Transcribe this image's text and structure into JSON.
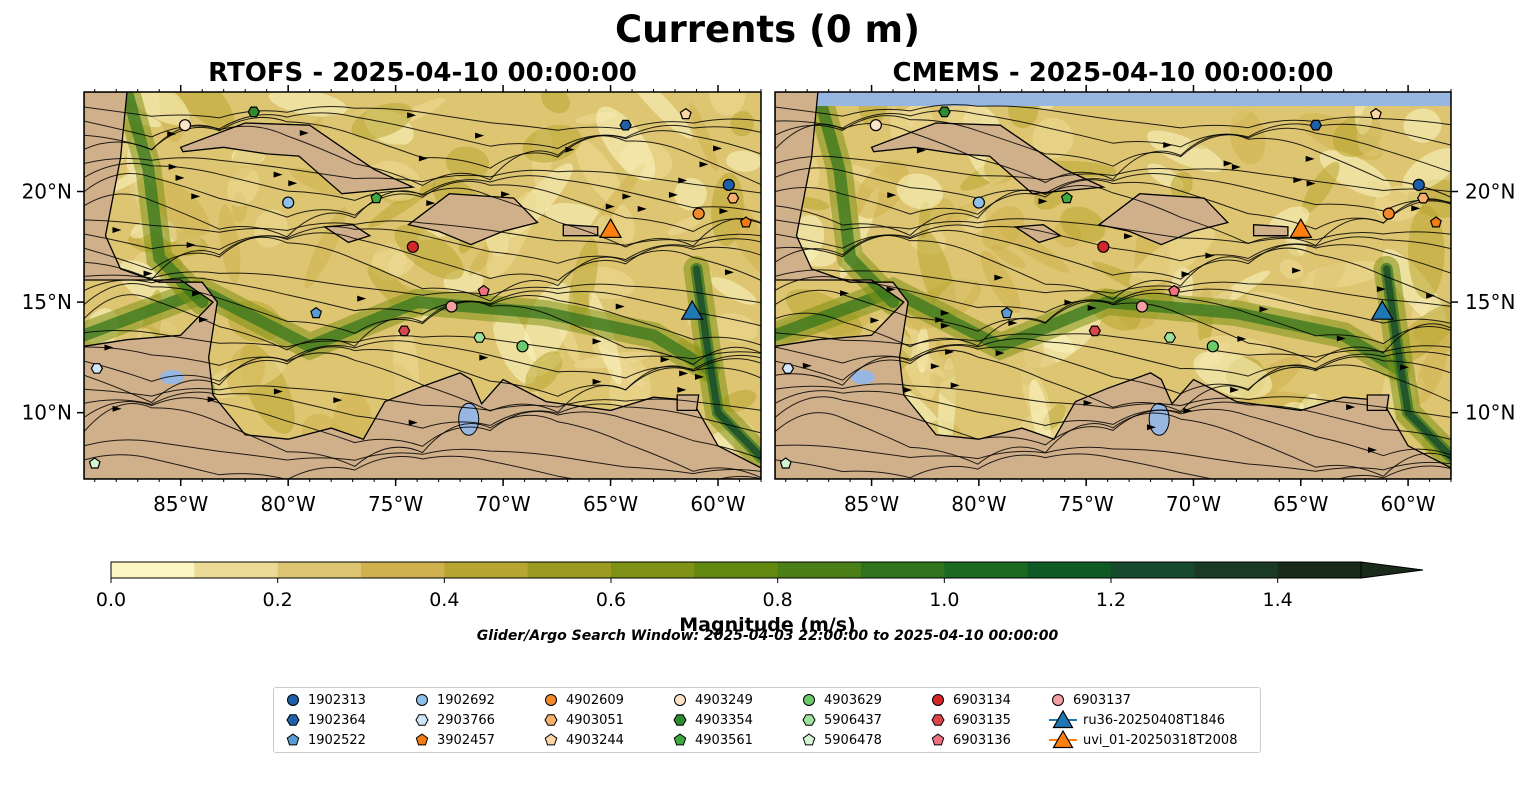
{
  "title": "Currents (0 m)",
  "panels": {
    "left_title": "RTOFS - 2025-04-10 00:00:00",
    "right_title": "CMEMS - 2025-04-10 00:00:00"
  },
  "colorbar": {
    "label": "Magnitude (m/s)",
    "ticks": [
      "0.0",
      "0.2",
      "0.4",
      "0.6",
      "0.8",
      "1.0",
      "1.2",
      "1.4"
    ],
    "colors": [
      "#fbf5c2",
      "#ecdb96",
      "#ddc572",
      "#cfb24e",
      "#b8a632",
      "#9c9b20",
      "#7f9116",
      "#63880f",
      "#4a7e16",
      "#2f741d",
      "#1b6a22",
      "#0f5a24",
      "#174a2c",
      "#1b3a24",
      "#192a1a"
    ]
  },
  "axes": {
    "lon_ticks": [
      "85°W",
      "80°W",
      "75°W",
      "70°W",
      "65°W",
      "60°W"
    ],
    "lat_ticks": [
      "20°N",
      "15°N",
      "10°N"
    ]
  },
  "search_window": "Glider/Argo Search Window: 2025-04-03 22:00:00 to 2025-04-10 00:00:00",
  "legend": [
    {
      "label": "1902313",
      "shape": "circle",
      "color": "#1f5ea8"
    },
    {
      "label": "1902364",
      "shape": "hexagon",
      "color": "#1f5ea8"
    },
    {
      "label": "1902522",
      "shape": "pentagon",
      "color": "#5b9bd5"
    },
    {
      "label": "1902692",
      "shape": "circle",
      "color": "#8ec0ea"
    },
    {
      "label": "2903766",
      "shape": "hexagon",
      "color": "#cfe6f7"
    },
    {
      "label": "3902457",
      "shape": "pentagon",
      "color": "#f07c12"
    },
    {
      "label": "4902609",
      "shape": "circle",
      "color": "#f28a2b"
    },
    {
      "label": "4903051",
      "shape": "hexagon",
      "color": "#f7b06c"
    },
    {
      "label": "4903244",
      "shape": "pentagon",
      "color": "#fdd6a6"
    },
    {
      "label": "4903249",
      "shape": "circle",
      "color": "#fde3c8"
    },
    {
      "label": "4903354",
      "shape": "hexagon",
      "color": "#2e8b2e"
    },
    {
      "label": "4903561",
      "shape": "pentagon",
      "color": "#3caa3c"
    },
    {
      "label": "4903629",
      "shape": "circle",
      "color": "#6cc96c"
    },
    {
      "label": "5906437",
      "shape": "hexagon",
      "color": "#9ee09e"
    },
    {
      "label": "5906478",
      "shape": "pentagon",
      "color": "#d4f5d4"
    },
    {
      "label": "6903134",
      "shape": "circle",
      "color": "#d62728"
    },
    {
      "label": "6903135",
      "shape": "hexagon",
      "color": "#d9464a"
    },
    {
      "label": "6903136",
      "shape": "pentagon",
      "color": "#f07080"
    },
    {
      "label": "6903137",
      "shape": "circle",
      "color": "#f4a0a0"
    },
    {
      "label": "ru36-20250408T1846",
      "shape": "triangle",
      "color": "#1f77b4"
    },
    {
      "label": "uvi_01-20250318T2008",
      "shape": "triangle",
      "color": "#ff7f0e"
    }
  ],
  "chart_data": [
    {
      "type": "heatmap",
      "title": "RTOFS - 2025-04-10 00:00:00",
      "lon_range": [
        -89.5,
        -58.0
      ],
      "lat_range": [
        7.0,
        24.5
      ],
      "xticks": [
        -85,
        -80,
        -75,
        -70,
        -65,
        -60
      ],
      "yticks": [
        20,
        15,
        10
      ],
      "colorbar_range": [
        0.0,
        1.5
      ],
      "markers": [
        {
          "name": "1902313",
          "lon": -59.5,
          "lat": 20.3
        },
        {
          "name": "1902364",
          "lon": -64.3,
          "lat": 23.0
        },
        {
          "name": "1902522",
          "lon": -78.7,
          "lat": 14.5
        },
        {
          "name": "1902692",
          "lon": -80.0,
          "lat": 19.5
        },
        {
          "name": "2903766",
          "lon": -88.9,
          "lat": 12.0
        },
        {
          "name": "3902457",
          "lon": -58.7,
          "lat": 18.6
        },
        {
          "name": "4902609",
          "lon": -60.9,
          "lat": 19.0
        },
        {
          "name": "4903051",
          "lon": -59.3,
          "lat": 19.7
        },
        {
          "name": "4903244",
          "lon": -61.5,
          "lat": 23.5
        },
        {
          "name": "4903249",
          "lon": -84.8,
          "lat": 23.0
        },
        {
          "name": "4903354",
          "lon": -81.6,
          "lat": 23.6
        },
        {
          "name": "4903561",
          "lon": -75.9,
          "lat": 19.7
        },
        {
          "name": "4903629",
          "lon": -69.1,
          "lat": 13.0
        },
        {
          "name": "5906437",
          "lon": -71.1,
          "lat": 13.4
        },
        {
          "name": "5906478",
          "lon": -89.0,
          "lat": 7.7
        },
        {
          "name": "6903134",
          "lon": -74.2,
          "lat": 17.5
        },
        {
          "name": "6903135",
          "lon": -74.6,
          "lat": 13.7
        },
        {
          "name": "6903136",
          "lon": -70.9,
          "lat": 15.5
        },
        {
          "name": "6903137",
          "lon": -72.4,
          "lat": 14.8
        },
        {
          "name": "ru36-20250408T1846",
          "lon": -61.2,
          "lat": 14.5
        },
        {
          "name": "uvi_01-20250318T2008",
          "lon": -65.0,
          "lat": 18.2
        }
      ]
    },
    {
      "type": "heatmap",
      "title": "CMEMS - 2025-04-10 00:00:00",
      "lon_range": [
        -89.5,
        -58.0
      ],
      "lat_range": [
        7.0,
        24.5
      ],
      "xticks": [
        -85,
        -80,
        -75,
        -70,
        -65,
        -60
      ],
      "yticks": [
        20,
        15,
        10
      ],
      "colorbar_range": [
        0.0,
        1.5
      ],
      "markers": [
        {
          "name": "1902313",
          "lon": -59.5,
          "lat": 20.3
        },
        {
          "name": "1902364",
          "lon": -64.3,
          "lat": 23.0
        },
        {
          "name": "1902522",
          "lon": -78.7,
          "lat": 14.5
        },
        {
          "name": "1902692",
          "lon": -80.0,
          "lat": 19.5
        },
        {
          "name": "2903766",
          "lon": -88.9,
          "lat": 12.0
        },
        {
          "name": "3902457",
          "lon": -58.7,
          "lat": 18.6
        },
        {
          "name": "4902609",
          "lon": -60.9,
          "lat": 19.0
        },
        {
          "name": "4903051",
          "lon": -59.3,
          "lat": 19.7
        },
        {
          "name": "4903244",
          "lon": -61.5,
          "lat": 23.5
        },
        {
          "name": "4903249",
          "lon": -84.8,
          "lat": 23.0
        },
        {
          "name": "4903354",
          "lon": -81.6,
          "lat": 23.6
        },
        {
          "name": "4903561",
          "lon": -75.9,
          "lat": 19.7
        },
        {
          "name": "4903629",
          "lon": -69.1,
          "lat": 13.0
        },
        {
          "name": "5906437",
          "lon": -71.1,
          "lat": 13.4
        },
        {
          "name": "5906478",
          "lon": -89.0,
          "lat": 7.7
        },
        {
          "name": "6903134",
          "lon": -74.2,
          "lat": 17.5
        },
        {
          "name": "6903135",
          "lon": -74.6,
          "lat": 13.7
        },
        {
          "name": "6903136",
          "lon": -70.9,
          "lat": 15.5
        },
        {
          "name": "6903137",
          "lon": -72.4,
          "lat": 14.8
        },
        {
          "name": "ru36-20250408T1846",
          "lon": -61.2,
          "lat": 14.5
        },
        {
          "name": "uvi_01-20250318T2008",
          "lon": -65.0,
          "lat": 18.2
        }
      ]
    }
  ]
}
